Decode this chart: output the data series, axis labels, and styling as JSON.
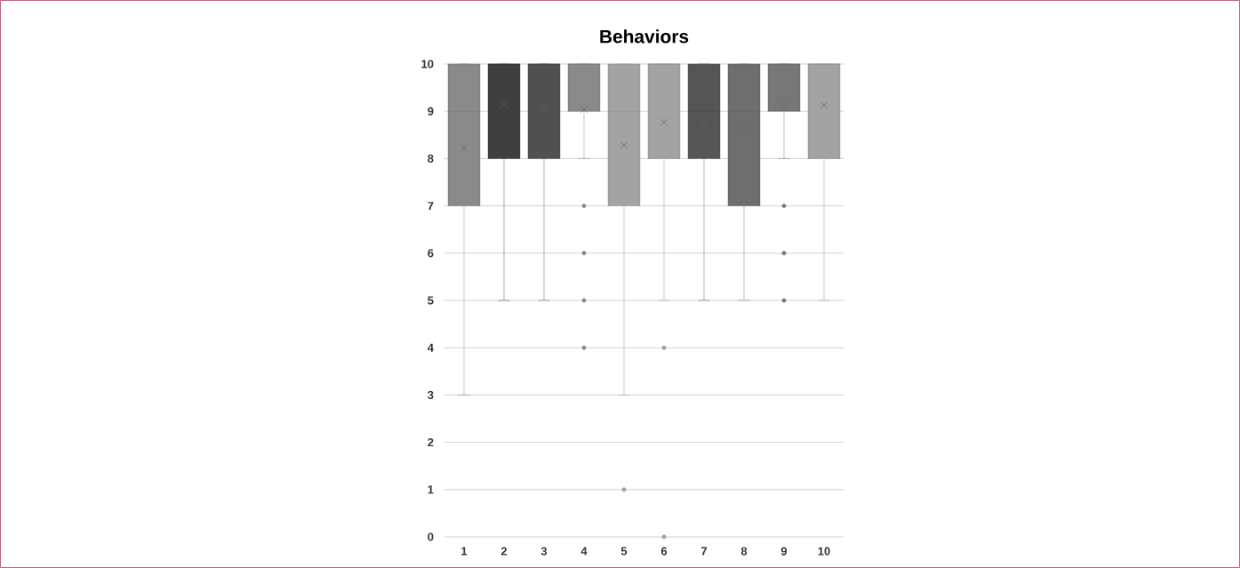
{
  "chart_data": {
    "type": "box",
    "title": "Behaviors",
    "categories": [
      "1",
      "2",
      "3",
      "4",
      "5",
      "6",
      "7",
      "8",
      "9",
      "10"
    ],
    "boxes": [
      {
        "low": 3,
        "q1": 7,
        "median": 9,
        "q3": 10,
        "high": 10,
        "mean": 8.23
      },
      {
        "low": 5,
        "q1": 8,
        "median": 10,
        "q3": 10,
        "high": 10,
        "mean": 9.15
      },
      {
        "low": 5,
        "q1": 8,
        "median": 10,
        "q3": 10,
        "high": 10,
        "mean": 9.05
      },
      {
        "low": 8,
        "q1": 9,
        "median": 10,
        "q3": 10,
        "high": 10,
        "mean": 9.04,
        "outliers": [
          7,
          6,
          5,
          4
        ]
      },
      {
        "low": 3,
        "q1": 7,
        "median": 9,
        "q3": 10,
        "high": 10,
        "mean": 8.28,
        "outliers": [
          1
        ]
      },
      {
        "low": 5,
        "q1": 8,
        "median": 10,
        "q3": 10,
        "high": 10,
        "mean": 8.77,
        "outliers": [
          4,
          0
        ]
      },
      {
        "low": 5,
        "q1": 8,
        "median": 9,
        "q3": 10,
        "high": 10,
        "mean": 8.77
      },
      {
        "low": 5,
        "q1": 7,
        "median": 9,
        "q3": 10,
        "high": 10,
        "mean": 8.63
      },
      {
        "low": 8,
        "q1": 9,
        "median": 10,
        "q3": 10,
        "high": 10,
        "mean": 9.15,
        "outliers": [
          7,
          6,
          5
        ]
      },
      {
        "low": 5,
        "q1": 8,
        "median": 10,
        "q3": 10,
        "high": 10,
        "mean": 9.13
      }
    ],
    "colors": [
      "#8a8a8a",
      "#3f3f3f",
      "#505050",
      "#8a8a8a",
      "#a3a3a3",
      "#a3a3a3",
      "#555555",
      "#6e6e6e",
      "#777777",
      "#a3a3a3"
    ],
    "ylim": [
      0,
      10
    ],
    "yticks": [
      0,
      1,
      2,
      3,
      4,
      5,
      6,
      7,
      8,
      9,
      10
    ],
    "grid": "y"
  }
}
